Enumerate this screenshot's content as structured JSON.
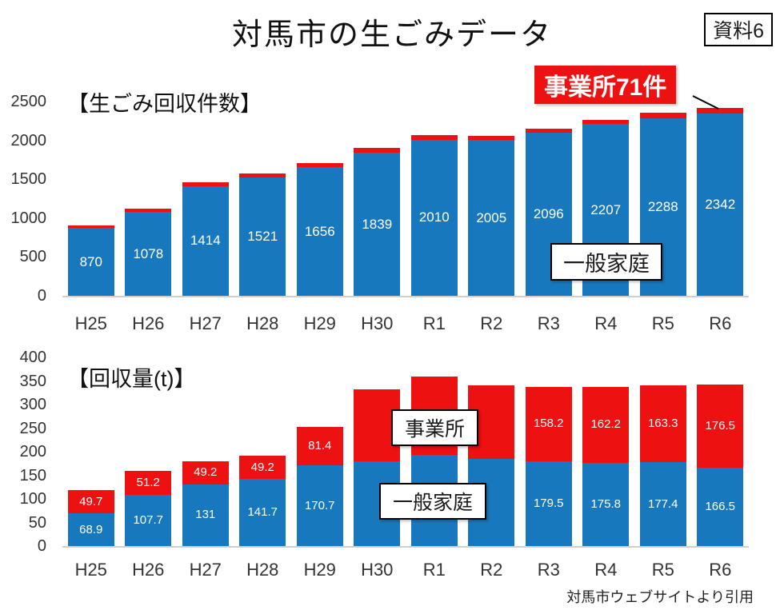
{
  "page": {
    "title": "対馬市の生ごみデータ",
    "doc_badge": "資料6",
    "citation": "対馬市ウェブサイトより引用"
  },
  "colors": {
    "household_blue": "#1878be",
    "business_red": "#ee1111"
  },
  "chart_data": [
    {
      "type": "bar",
      "stacked": true,
      "title": "【生ごみ回収件数】",
      "categories": [
        "H25",
        "H26",
        "H27",
        "H28",
        "H29",
        "H30",
        "R1",
        "R2",
        "R3",
        "R4",
        "R5",
        "R6"
      ],
      "ylim": [
        0,
        2500
      ],
      "yticks": [
        0,
        500,
        1000,
        1500,
        2000,
        2500
      ],
      "series": [
        {
          "name": "一般家庭",
          "color": "#1878be",
          "values": [
            870,
            1078,
            1414,
            1521,
            1656,
            1839,
            2010,
            2005,
            2096,
            2207,
            2288,
            2342
          ],
          "labels": [
            "870",
            "1078",
            "1414",
            "1521",
            "1656",
            "1839",
            "2010",
            "2005",
            "2096",
            "2207",
            "2288",
            "2342"
          ]
        },
        {
          "name": "事業所",
          "color": "#ee1111",
          "values": [
            40,
            45,
            50,
            50,
            55,
            60,
            55,
            50,
            55,
            60,
            65,
            71
          ],
          "labels": [
            "",
            "",
            "",
            "",
            "",
            "",
            "",
            "",
            "",
            "",
            "",
            ""
          ]
        }
      ],
      "annotations": {
        "household_label": "一般家庭",
        "business_callout": "事業所71件"
      }
    },
    {
      "type": "bar",
      "stacked": true,
      "title": "【回収量(t)】",
      "categories": [
        "H25",
        "H26",
        "H27",
        "H28",
        "H29",
        "H30",
        "R1",
        "R2",
        "R3",
        "R4",
        "R5",
        "R6"
      ],
      "ylim": [
        0,
        400
      ],
      "yticks": [
        0,
        50,
        100,
        150,
        200,
        250,
        300,
        350,
        400
      ],
      "series": [
        {
          "name": "一般家庭",
          "color": "#1878be",
          "values": [
            68.9,
            107.7,
            131,
            141.7,
            170.7,
            180,
            193,
            184,
            179.5,
            175.8,
            177.4,
            166.5
          ],
          "labels": [
            "68.9",
            "107.7",
            "131",
            "141.7",
            "170.7",
            "",
            "",
            "",
            "179.5",
            "175.8",
            "177.4",
            "166.5"
          ]
        },
        {
          "name": "事業所",
          "color": "#ee1111",
          "values": [
            49.7,
            51.2,
            49.2,
            49.2,
            81.4,
            152,
            167,
            157,
            158.2,
            162.2,
            163.3,
            176.5
          ],
          "labels": [
            "49.7",
            "51.2",
            "49.2",
            "49.2",
            "81.4",
            "",
            "",
            "",
            "158.2",
            "162.2",
            "163.3",
            "176.5"
          ]
        }
      ],
      "annotations": {
        "business_label": "事業所",
        "household_label": "一般家庭"
      }
    }
  ]
}
